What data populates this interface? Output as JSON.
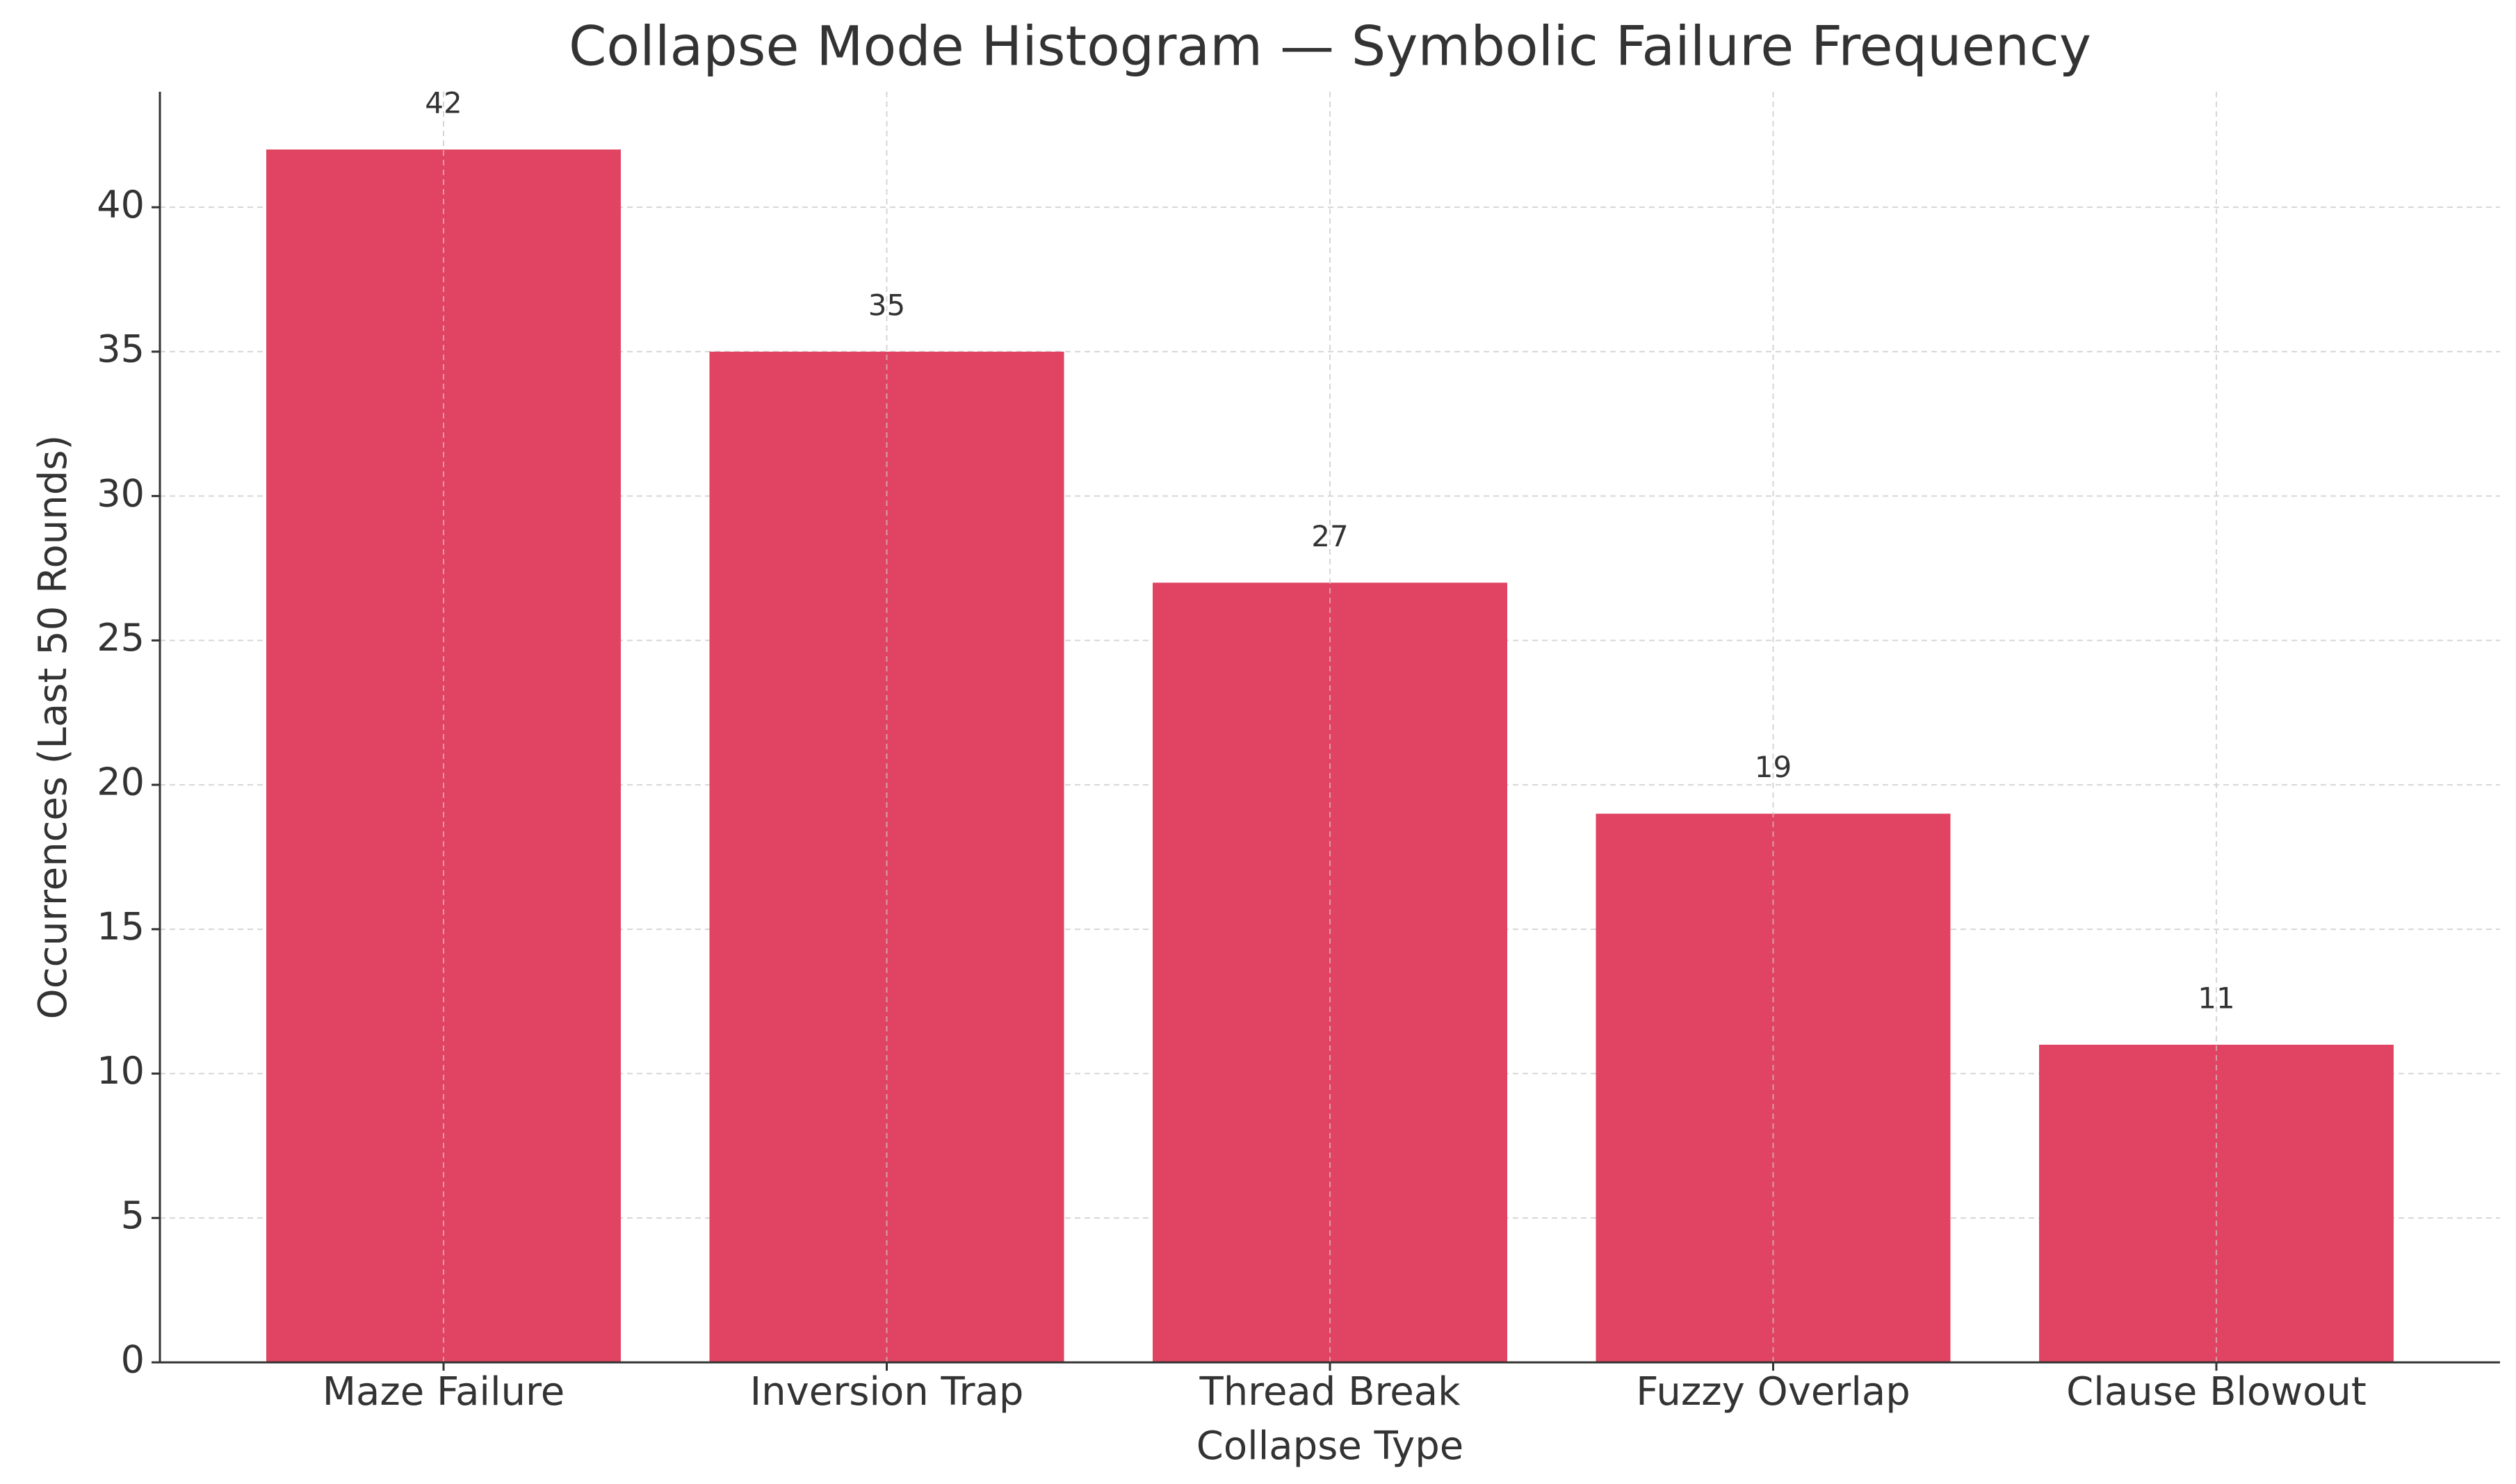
{
  "chart_data": {
    "type": "bar",
    "title": "Collapse Mode Histogram — Symbolic Failure Frequency",
    "xlabel": "Collapse Type",
    "ylabel": "Occurrences (Last 50 Rounds)",
    "categories": [
      "Maze Failure",
      "Inversion Trap",
      "Thread Break",
      "Fuzzy Overlap",
      "Clause Blowout"
    ],
    "values": [
      42,
      35,
      27,
      19,
      11
    ],
    "color": "#e04462",
    "ylim": [
      0,
      44
    ],
    "yticks": [
      0,
      5,
      10,
      15,
      20,
      25,
      30,
      35,
      40
    ],
    "grid": true
  }
}
